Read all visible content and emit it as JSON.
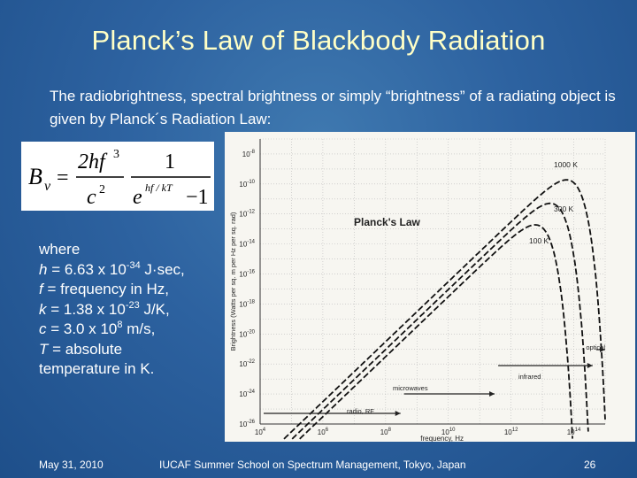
{
  "slide": {
    "title": "Planck’s Law of Blackbody Radiation",
    "intro": "The radiobrightness, spectral brightness or simply “brightness” of a radiating object is given by Planck´s Radiation Law:",
    "formula": {
      "lhs": "B",
      "lhs_sub": "ν",
      "equals": "=",
      "num1": "2hf",
      "num1_exp": "3",
      "den1": "c",
      "den1_exp": "2",
      "num2": "1",
      "den2_base": "e",
      "den2_exp": "hf / kT",
      "den2_minus": "−1"
    },
    "variables": {
      "where": "where",
      "h_sym": "h",
      "h_val": " = 6.63 x 10",
      "h_exp": "-34",
      "h_unit": " J·sec,",
      "f_sym": "f",
      "f_val": " = frequency in Hz,",
      "k_sym": "k",
      "k_val": " = 1.38 x 10",
      "k_exp": "-23",
      "k_unit": " J/K,",
      "c_sym": "c",
      "c_val": " = 3.0 x 10",
      "c_exp": "8",
      "c_unit": " m/s,",
      "T_sym": "T",
      "T_val": " = absolute",
      "T_line2": "temperature in K."
    },
    "footer": {
      "date": "May 31, 2010",
      "event": "IUCAF Summer School on Spectrum Management, Tokyo, Japan",
      "page": "26"
    }
  },
  "chart_data": {
    "type": "line",
    "title": "Planck's Law",
    "xlabel": "frequency, Hz",
    "ylabel": "Brightness (Watts per sq. m per Hz per sq. rad)",
    "x_scale": "log",
    "y_scale": "log",
    "xlim": [
      10000.0,
      1000000000000000.0
    ],
    "ylim": [
      1e-26,
      1e-07
    ],
    "x_ticks": [
      {
        "label": "10",
        "exp": "4"
      },
      {
        "label": "10",
        "exp": "6"
      },
      {
        "label": "10",
        "exp": "8"
      },
      {
        "label": "10",
        "exp": "10"
      },
      {
        "label": "10",
        "exp": "12"
      },
      {
        "label": "10",
        "exp": "14"
      }
    ],
    "y_ticks": [
      {
        "label": "10",
        "exp": "-8"
      },
      {
        "label": "10",
        "exp": "-10"
      },
      {
        "label": "10",
        "exp": "-12"
      },
      {
        "label": "10",
        "exp": "-14"
      },
      {
        "label": "10",
        "exp": "-16"
      },
      {
        "label": "10",
        "exp": "-18"
      },
      {
        "label": "10",
        "exp": "-20"
      },
      {
        "label": "10",
        "exp": "-22"
      },
      {
        "label": "10",
        "exp": "-24"
      },
      {
        "label": "10",
        "exp": "-26"
      }
    ],
    "series": [
      {
        "name": "1000 K",
        "temperature_K": 1000
      },
      {
        "name": "300 K",
        "temperature_K": 300
      },
      {
        "name": "100 K",
        "temperature_K": 100
      }
    ],
    "bands": [
      {
        "name": "radio, RF",
        "from_hz": 10000.0,
        "to_hz": 300000000.0
      },
      {
        "name": "microwaves",
        "from_hz": 300000000.0,
        "to_hz": 300000000000.0
      },
      {
        "name": "infrared",
        "from_hz": 300000000000.0,
        "to_hz": 400000000000000.0
      },
      {
        "name": "optical",
        "from_hz": 400000000000000.0,
        "to_hz": 1000000000000000.0
      }
    ],
    "grid": true,
    "legend": "inline labels"
  }
}
